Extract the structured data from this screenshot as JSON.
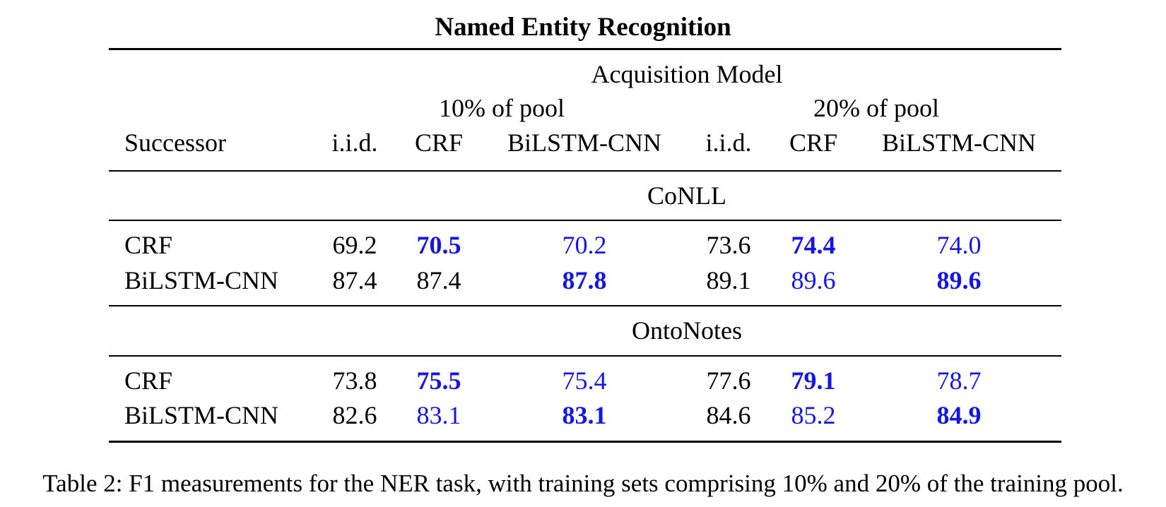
{
  "table": {
    "title": "Named Entity Recognition",
    "header": {
      "group_label": "Acquisition Model",
      "pool_labels": [
        "10% of pool",
        "20% of pool"
      ],
      "successor_label": "Successor",
      "columns": [
        "i.i.d.",
        "CRF",
        "BiLSTM-CNN",
        "i.i.d.",
        "CRF",
        "BiLSTM-CNN"
      ]
    },
    "sections": [
      {
        "name": "CoNLL",
        "rows": [
          {
            "successor": "CRF",
            "values": [
              "69.2",
              "70.5",
              "70.2",
              "73.6",
              "74.4",
              "74.0"
            ]
          },
          {
            "successor": "BiLSTM-CNN",
            "values": [
              "87.4",
              "87.4",
              "87.8",
              "89.1",
              "89.6",
              "89.6"
            ]
          }
        ]
      },
      {
        "name": "OntoNotes",
        "rows": [
          {
            "successor": "CRF",
            "values": [
              "73.8",
              "75.5",
              "75.4",
              "77.6",
              "79.1",
              "78.7"
            ]
          },
          {
            "successor": "BiLSTM-CNN",
            "values": [
              "82.6",
              "83.1",
              "83.1",
              "84.6",
              "85.2",
              "84.9"
            ]
          }
        ]
      }
    ],
    "colors": {
      "text": "#000000",
      "highlight": "#1515e6"
    }
  },
  "caption": "Table 2: F1 measurements for the NER task, with training sets comprising 10% and 20% of the training pool."
}
